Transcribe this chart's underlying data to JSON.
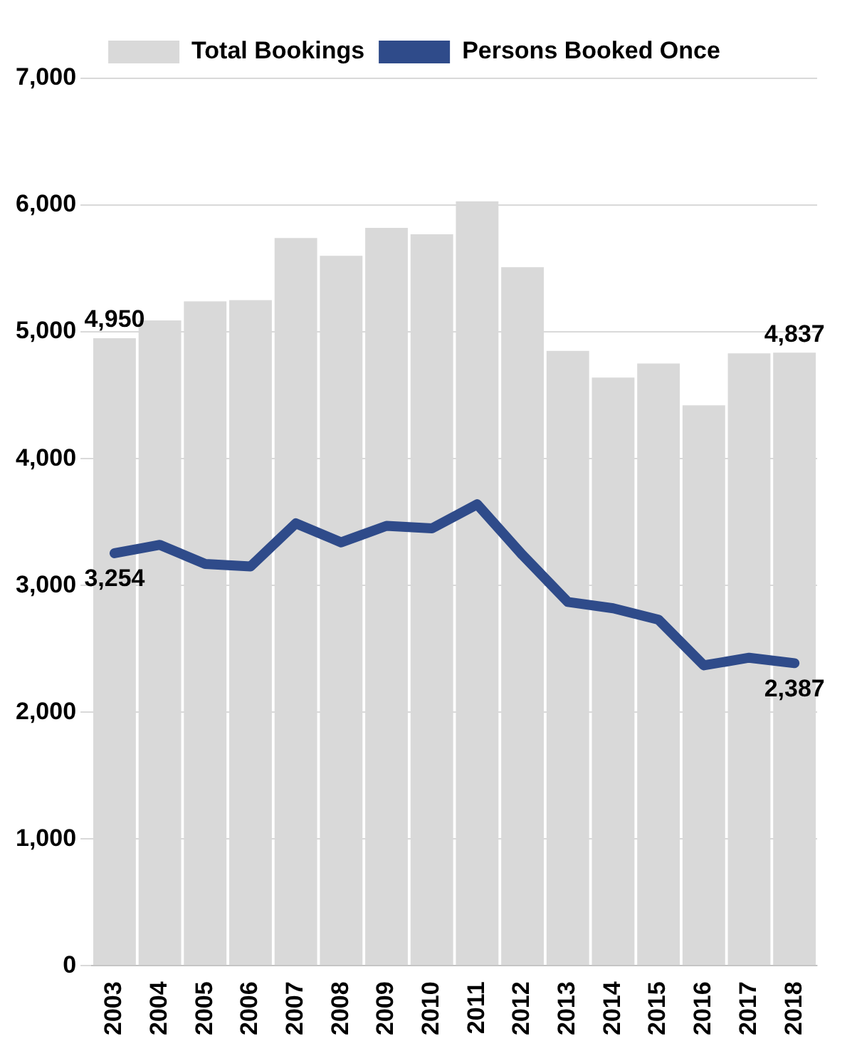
{
  "chart_data": {
    "type": "bar",
    "categories": [
      "2003",
      "2004",
      "2005",
      "2006",
      "2007",
      "2008",
      "2009",
      "2010",
      "2011",
      "2012",
      "2013",
      "2014",
      "2015",
      "2016",
      "2017",
      "2018"
    ],
    "series": [
      {
        "name": "Total Bookings",
        "color": "#d9d9d9",
        "values": [
          4950,
          5090,
          5240,
          5250,
          5740,
          5600,
          5820,
          5770,
          6030,
          5510,
          4850,
          4640,
          4750,
          4420,
          4830,
          4837
        ],
        "value_labels": [
          "4,950",
          null,
          null,
          null,
          null,
          null,
          null,
          null,
          null,
          null,
          null,
          null,
          null,
          null,
          null,
          "4,837"
        ]
      },
      {
        "name": "Persons Booked Once",
        "type": "line",
        "color": "#2f4b8a",
        "values": [
          3254,
          3320,
          3170,
          3150,
          3490,
          3340,
          3470,
          3450,
          3640,
          3240,
          2870,
          2820,
          2730,
          2370,
          2430,
          2387
        ],
        "value_labels": [
          "3,254",
          null,
          null,
          null,
          null,
          null,
          null,
          null,
          null,
          null,
          null,
          null,
          null,
          null,
          null,
          "2,387"
        ]
      }
    ],
    "ylim": [
      0,
      7000
    ],
    "yticks": [
      0,
      {
        "value": 1000,
        "label": "1,000"
      },
      {
        "value": 2000,
        "label": "2,000"
      },
      {
        "value": 3000,
        "label": "3,000"
      },
      {
        "value": 4000,
        "label": "4,000"
      },
      {
        "value": 5000,
        "label": "5,000"
      },
      {
        "value": 6000,
        "label": "6,000"
      },
      {
        "value": 7000,
        "label": "7,000"
      }
    ],
    "grid": "y",
    "legend": "top",
    "marker": "none"
  }
}
